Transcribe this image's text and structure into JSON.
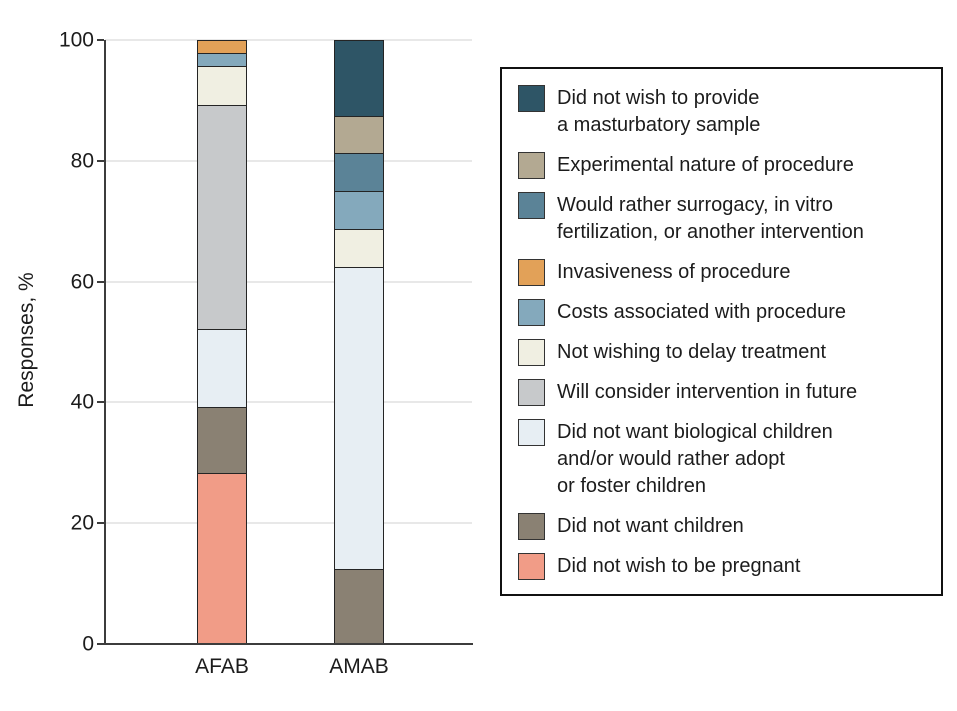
{
  "chart_data": {
    "type": "bar",
    "stacked": true,
    "title": "",
    "xlabel": "",
    "ylabel": "Responses, %",
    "ylim": [
      0,
      100
    ],
    "yticks": [
      0,
      20,
      40,
      60,
      80,
      100
    ],
    "grid": true,
    "legend_position": "right",
    "categories": [
      "AFAB",
      "AMAB"
    ],
    "series": [
      {
        "name": "Did not wish to be pregnant",
        "color": "#F19C87",
        "values": [
          28.3,
          0
        ]
      },
      {
        "name": "Did not want children",
        "color": "#8A8173",
        "values": [
          10.9,
          12.5
        ]
      },
      {
        "name": "Did not want biological children and/or would rather adopt or foster children",
        "color": "#E7EEF3",
        "values": [
          13.0,
          50.0
        ]
      },
      {
        "name": "Will consider intervention in future",
        "color": "#C7C9CB",
        "values": [
          37.0,
          0
        ]
      },
      {
        "name": "Not wishing to delay treatment",
        "color": "#F0EFE2",
        "values": [
          6.5,
          6.25
        ]
      },
      {
        "name": "Costs associated with procedure",
        "color": "#84A9BC",
        "values": [
          2.2,
          6.25
        ]
      },
      {
        "name": "Invasiveness of procedure",
        "color": "#E2A158",
        "values": [
          2.2,
          0
        ]
      },
      {
        "name": "Would rather surrogacy, in vitro fertilization, or another intervention",
        "color": "#5B8397",
        "values": [
          0,
          6.25
        ]
      },
      {
        "name": "Experimental nature of procedure",
        "color": "#B3A992",
        "values": [
          0,
          6.25
        ]
      },
      {
        "name": "Did not wish to provide a masturbatory sample",
        "color": "#2E5566",
        "values": [
          0,
          12.5
        ]
      }
    ],
    "legend_items": [
      {
        "label": "Did not wish to provide\na masturbatory sample",
        "color": "#2E5566"
      },
      {
        "label": "Experimental nature of procedure",
        "color": "#B3A992"
      },
      {
        "label": "Would rather surrogacy, in vitro\nfertilization, or another intervention",
        "color": "#5B8397"
      },
      {
        "label": "Invasiveness of procedure",
        "color": "#E2A158"
      },
      {
        "label": "Costs associated with procedure",
        "color": "#84A9BC"
      },
      {
        "label": "Not wishing to delay treatment",
        "color": "#F0EFE2"
      },
      {
        "label": "Will consider intervention in future",
        "color": "#C7C9CB"
      },
      {
        "label": "Did not want biological children\nand/or would rather adopt\nor foster children",
        "color": "#E7EEF3"
      },
      {
        "label": "Did not want children",
        "color": "#8A8173"
      },
      {
        "label": "Did not wish to be pregnant",
        "color": "#F19C87"
      }
    ]
  }
}
